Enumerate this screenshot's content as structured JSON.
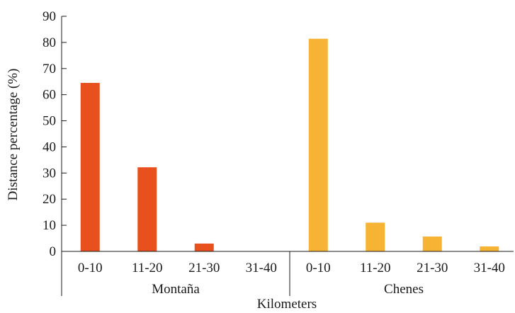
{
  "chart_data": {
    "type": "bar",
    "xlabel": "Kilometers",
    "ylabel": "Distance percentage (%)",
    "ylim": [
      0,
      90
    ],
    "yticks": [
      0,
      10,
      20,
      30,
      40,
      50,
      60,
      70,
      80,
      90
    ],
    "grid": false,
    "groups": [
      {
        "name": "Montaña",
        "color": "#E8501E",
        "categories": [
          "0-10",
          "11-20",
          "21-30",
          "31-40"
        ],
        "values": [
          64.5,
          32.2,
          3.0,
          0
        ]
      },
      {
        "name": "Chenes",
        "color": "#F6B334",
        "categories": [
          "0-10",
          "11-20",
          "21-30",
          "31-40"
        ],
        "values": [
          81.4,
          11.0,
          5.7,
          1.9
        ]
      }
    ]
  }
}
